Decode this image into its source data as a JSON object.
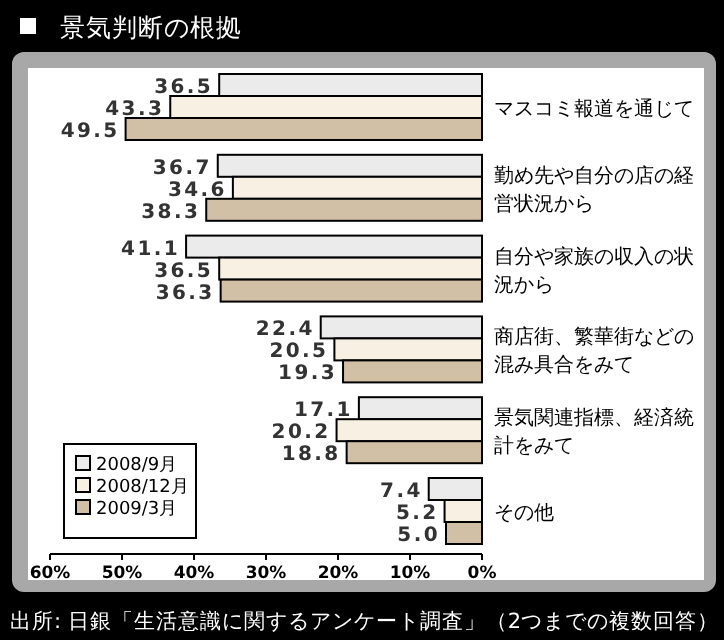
{
  "chart_data": {
    "type": "bar",
    "orientation": "horizontal",
    "title": "景気判断の根拠",
    "categories": [
      "マスコミ報道を通じて",
      "勤め先や自分の店の経営状況から",
      "自分や家族の収入の状況から",
      "商店街、繁華街などの混み具合をみて",
      "景気関連指標、経済統計をみて",
      "その他"
    ],
    "series": [
      {
        "name": "2008/9月",
        "color": "#ebebeb",
        "values": [
          36.5,
          36.7,
          41.1,
          22.4,
          17.1,
          7.4
        ],
        "value_labels": [
          "36.5",
          "36.7",
          "41.1",
          "22.4",
          "17.1",
          "7.4"
        ]
      },
      {
        "name": "2008/12月",
        "color": "#f8f0e2",
        "values": [
          43.3,
          34.6,
          36.5,
          20.5,
          20.2,
          5.2
        ],
        "value_labels": [
          "43.3",
          "34.6",
          "36.5",
          "20.5",
          "20.2",
          "5.2"
        ]
      },
      {
        "name": "2009/3月",
        "color": "#d2c0a6",
        "values": [
          49.5,
          38.3,
          36.3,
          19.3,
          18.8,
          5.0
        ],
        "value_labels": [
          "49.5",
          "38.3",
          "36.3",
          "19.3",
          "18.8",
          "5.0"
        ]
      }
    ],
    "xlim": [
      60,
      0
    ],
    "xticks": [
      {
        "value": 60,
        "label": "60%"
      },
      {
        "value": 50,
        "label": "50%"
      },
      {
        "value": 40,
        "label": "40%"
      },
      {
        "value": 30,
        "label": "30%"
      },
      {
        "value": 20,
        "label": "20%"
      },
      {
        "value": 10,
        "label": "10%"
      },
      {
        "value": 0,
        "label": "0%"
      }
    ],
    "legend": "bottom left",
    "annotations": [
      "出所: 日銀「生活意識に関するアンケート調査」（2つまでの複数回答）"
    ]
  }
}
